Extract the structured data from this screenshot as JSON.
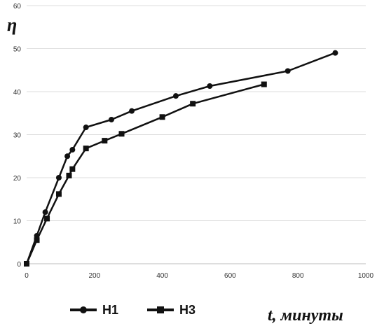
{
  "chart_data": {
    "type": "line",
    "title": "",
    "xlabel": "t, минуты",
    "ylabel": "η",
    "xlim": [
      0,
      1000
    ],
    "ylim": [
      0,
      60
    ],
    "x_ticks": [
      "0",
      "200",
      "400",
      "600",
      "800",
      "1000"
    ],
    "y_ticks": [
      "0",
      "10",
      "20",
      "30",
      "40",
      "50",
      "60"
    ],
    "grid": "horizontal",
    "legend_position": "bottom-left",
    "series": [
      {
        "name": "H1",
        "marker": "circle",
        "color": "#111111",
        "x": [
          0,
          30,
          55,
          95,
          120,
          135,
          175,
          250,
          310,
          440,
          540,
          770,
          910
        ],
        "y": [
          0,
          6.5,
          12,
          20,
          25,
          26.5,
          31.7,
          33.5,
          35.5,
          39,
          41.3,
          44.8,
          49
        ]
      },
      {
        "name": "H3",
        "marker": "square",
        "color": "#111111",
        "x": [
          0,
          30,
          60,
          95,
          125,
          135,
          175,
          230,
          280,
          400,
          490,
          700
        ],
        "y": [
          0,
          5.5,
          10.5,
          16.2,
          20.5,
          22,
          26.8,
          28.6,
          30.2,
          34.1,
          37.2,
          41.7
        ]
      }
    ]
  }
}
